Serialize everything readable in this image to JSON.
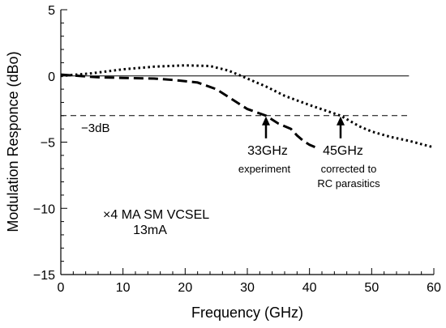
{
  "chart_data": {
    "type": "line",
    "title": "",
    "xlabel": "Frequency (GHz)",
    "ylabel": "Modulation Responce (dBo)",
    "xlim": [
      0,
      60
    ],
    "ylim": [
      -15,
      5
    ],
    "xticks": [
      0,
      10,
      20,
      30,
      40,
      50,
      60
    ],
    "yticks": [
      5,
      0,
      -5,
      -10,
      -15
    ],
    "xtick_labels": [
      "0",
      "10",
      "20",
      "30",
      "40",
      "50",
      "60"
    ],
    "ytick_labels": [
      "5",
      "0",
      "−5",
      "−10",
      "−15"
    ],
    "grid": false,
    "reference_lines": [
      {
        "y": 0,
        "style": "solid"
      },
      {
        "y": -3,
        "style": "dashed",
        "label": "−3dB"
      }
    ],
    "series": [
      {
        "style": "dashed",
        "x": [
          0,
          3,
          6,
          10,
          15,
          18,
          22,
          25,
          27,
          30,
          33,
          35,
          37,
          38,
          39,
          40,
          41
        ],
        "y": [
          0.1,
          0.0,
          -0.1,
          -0.15,
          -0.2,
          -0.3,
          -0.5,
          -1.0,
          -1.6,
          -2.5,
          -3.0,
          -3.6,
          -4.0,
          -4.5,
          -4.9,
          -5.2,
          -5.4
        ]
      },
      {
        "style": "dotted",
        "x": [
          0,
          5,
          10,
          15,
          20,
          24,
          27,
          30,
          33,
          36,
          40,
          45,
          48,
          50,
          53,
          56,
          60
        ],
        "y": [
          0.0,
          0.2,
          0.5,
          0.7,
          0.8,
          0.75,
          0.4,
          -0.2,
          -0.8,
          -1.5,
          -2.2,
          -3.0,
          -3.8,
          -4.2,
          -4.6,
          -4.9,
          -5.4
        ]
      }
    ],
    "annotations": [
      {
        "text": "33GHz",
        "sub": "experiment",
        "x": 33,
        "y": -3
      },
      {
        "text": "45GHz",
        "sub": "corrected to|RC parasitics",
        "x": 45,
        "y": -3
      }
    ],
    "legend_text": [
      "×4 MA SM VCSEL",
      "13mA"
    ]
  }
}
